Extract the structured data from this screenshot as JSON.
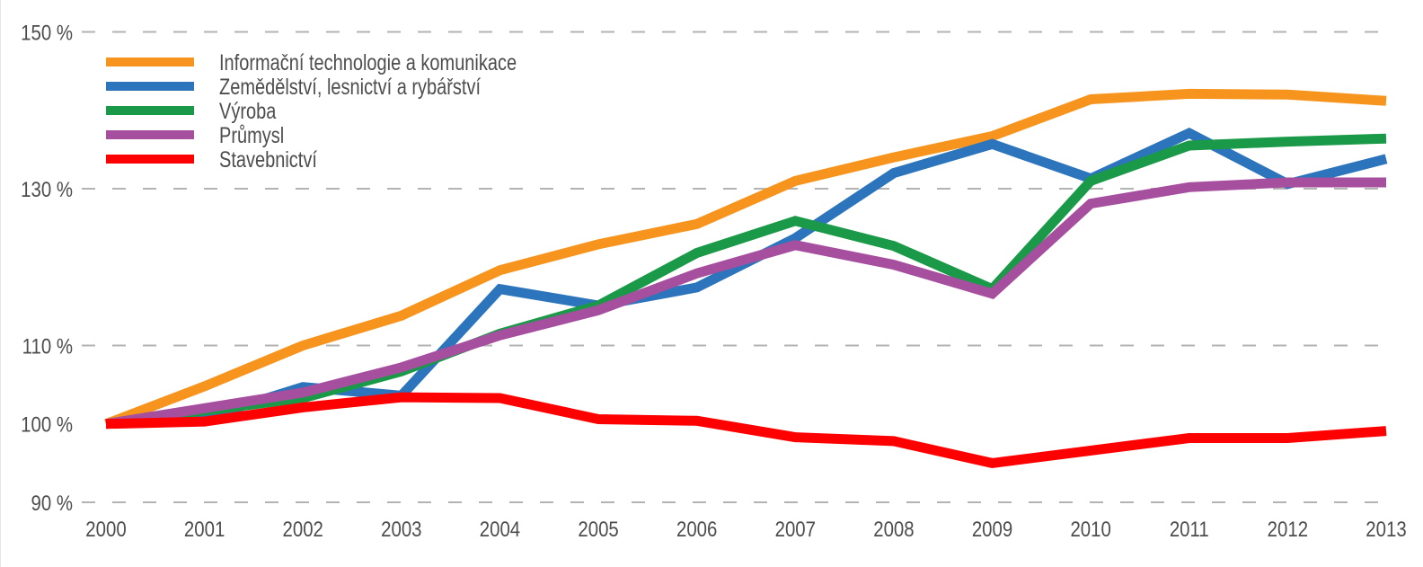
{
  "chart_data": {
    "type": "line",
    "title": "",
    "xlabel": "",
    "ylabel": "",
    "x": [
      "2000",
      "2001",
      "2002",
      "2003",
      "2004",
      "2005",
      "2006",
      "2007",
      "2008",
      "2009",
      "2010",
      "2011",
      "2012",
      "2013"
    ],
    "ylim": [
      90,
      150
    ],
    "yticks": [
      {
        "value": 150,
        "label": "150 %",
        "grid": true
      },
      {
        "value": 130,
        "label": "130 %",
        "grid": true
      },
      {
        "value": 110,
        "label": "110 %",
        "grid": true
      },
      {
        "value": 100,
        "label": "100 %",
        "grid": false
      },
      {
        "value": 90,
        "label": "90 %",
        "grid": true
      }
    ],
    "grid": "dashed horizontal",
    "legend_position": "top-left",
    "series": [
      {
        "name": "Informační technologie a komunikace",
        "color": "#F7941D",
        "values": [
          100,
          104.8,
          110.0,
          113.8,
          119.6,
          122.9,
          125.5,
          131.0,
          134.0,
          136.7,
          141.4,
          142.1,
          142.0,
          141.2
        ]
      },
      {
        "name": "Zemědělství, lesnictví a rybářství",
        "color": "#2C75BC",
        "values": [
          100,
          100.8,
          104.7,
          103.6,
          117.2,
          115.1,
          117.4,
          123.7,
          132.0,
          135.7,
          131.3,
          137.1,
          130.6,
          133.8
        ]
      },
      {
        "name": "Výroba",
        "color": "#1A9A48",
        "values": [
          100,
          101.7,
          103.3,
          106.7,
          111.5,
          115.1,
          121.8,
          125.9,
          122.7,
          117.2,
          131.0,
          135.5,
          136.0,
          136.4
        ]
      },
      {
        "name": "Průmysl",
        "color": "#A54F9E",
        "values": [
          100,
          102.0,
          104.0,
          107.2,
          111.3,
          114.5,
          119.2,
          122.8,
          120.3,
          116.6,
          128.1,
          130.2,
          130.8,
          130.8
        ]
      },
      {
        "name": "Stavebnictví",
        "color": "#FF0000",
        "values": [
          100,
          100.3,
          102.1,
          103.4,
          103.3,
          100.6,
          100.4,
          98.3,
          97.8,
          95.0,
          96.6,
          98.2,
          98.2,
          99.1
        ]
      }
    ]
  }
}
